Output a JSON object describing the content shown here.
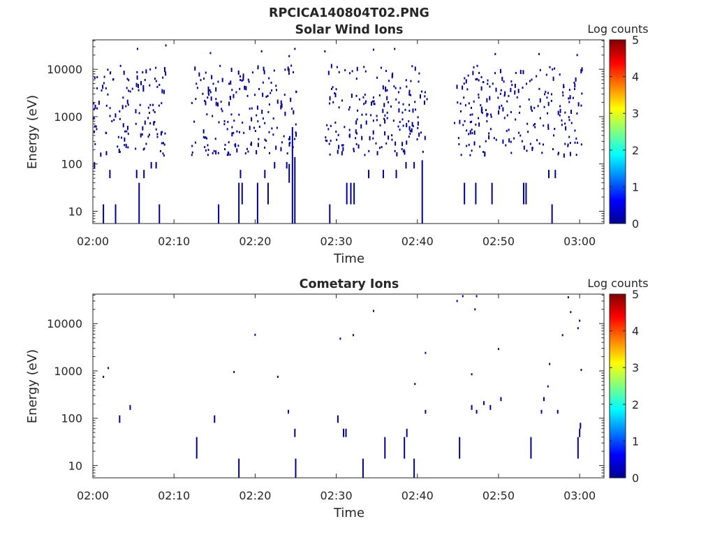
{
  "figure": {
    "title": "RPCICA140804T02.PNG"
  },
  "colormap": {
    "colors": [
      "#00008f",
      "#0000ff",
      "#0080ff",
      "#00ffff",
      "#80ff80",
      "#ffff00",
      "#ff8000",
      "#ff0000",
      "#800000"
    ]
  },
  "chart_data": [
    {
      "type": "heatmap",
      "title": "Solar Wind Ions",
      "xlabel": "Time",
      "ylabel": "Energy (eV)",
      "x_ticks": [
        "02:00",
        "02:10",
        "02:20",
        "02:30",
        "02:40",
        "02:50",
        "03:00"
      ],
      "x_tick_minutes": [
        0,
        10,
        20,
        30,
        40,
        50,
        60
      ],
      "xlim_minutes": [
        0,
        63
      ],
      "y_scale": "log",
      "y_ticks": [
        "10",
        "100",
        "1000",
        "10000"
      ],
      "y_tick_values": [
        10,
        100,
        1000,
        10000
      ],
      "ylim": [
        5.5,
        42000
      ],
      "colorbar_label": "Log counts",
      "colorbar_ticks": [
        "0",
        "1",
        "2",
        "3",
        "4",
        "5"
      ],
      "colorbar_range": [
        0,
        5
      ],
      "grid": false,
      "features": [
        {
          "type": "vline",
          "t": 1.3,
          "e": [
            5.5,
            14
          ]
        },
        {
          "type": "vline",
          "t": 2.8,
          "e": [
            5.5,
            14
          ]
        },
        {
          "type": "vline",
          "t": 5.7,
          "e": [
            5.5,
            40
          ]
        },
        {
          "type": "vline",
          "t": 8.2,
          "e": [
            5.5,
            14
          ]
        },
        {
          "type": "vline",
          "t": 15.5,
          "e": [
            5.5,
            14
          ]
        },
        {
          "type": "vline",
          "t": 18.0,
          "e": [
            5.5,
            40
          ]
        },
        {
          "type": "vline",
          "t": 20.3,
          "e": [
            5.5,
            40
          ]
        },
        {
          "type": "vline",
          "t": 24.6,
          "e": [
            5.5,
            600
          ]
        },
        {
          "type": "vline",
          "t": 24.9,
          "e": [
            5.5,
            140
          ]
        },
        {
          "type": "vline",
          "t": 29.2,
          "e": [
            5.5,
            14
          ]
        },
        {
          "type": "vline",
          "t": 40.6,
          "e": [
            5.5,
            120
          ]
        },
        {
          "type": "vline",
          "t": 56.6,
          "e": [
            5.5,
            14
          ]
        },
        {
          "type": "vline",
          "t": 18.4,
          "e": [
            14,
            40
          ]
        },
        {
          "type": "vline",
          "t": 21.6,
          "e": [
            14,
            40
          ]
        },
        {
          "type": "vline",
          "t": 24.2,
          "e": [
            40,
            100
          ]
        },
        {
          "type": "vline",
          "t": 31.3,
          "e": [
            14,
            40
          ]
        },
        {
          "type": "vline",
          "t": 31.8,
          "e": [
            14,
            40
          ]
        },
        {
          "type": "vline",
          "t": 32.2,
          "e": [
            14,
            40
          ]
        },
        {
          "type": "vline",
          "t": 45.8,
          "e": [
            14,
            40
          ]
        },
        {
          "type": "vline",
          "t": 47.2,
          "e": [
            14,
            40
          ]
        },
        {
          "type": "vline",
          "t": 49.2,
          "e": [
            14,
            40
          ]
        },
        {
          "type": "vline",
          "t": 53.1,
          "e": [
            14,
            40
          ]
        },
        {
          "type": "vline",
          "t": 53.4,
          "e": [
            14,
            40
          ]
        },
        {
          "type": "vline",
          "t": 0.2,
          "e": [
            80,
            110
          ]
        },
        {
          "type": "vline",
          "t": 2.1,
          "e": [
            50,
            75
          ]
        },
        {
          "type": "vline",
          "t": 5.4,
          "e": [
            50,
            75
          ]
        },
        {
          "type": "vline",
          "t": 6.3,
          "e": [
            50,
            75
          ]
        },
        {
          "type": "vline",
          "t": 7.2,
          "e": [
            80,
            110
          ]
        },
        {
          "type": "vline",
          "t": 7.8,
          "e": [
            80,
            110
          ]
        },
        {
          "type": "vline",
          "t": 18.2,
          "e": [
            50,
            75
          ]
        },
        {
          "type": "vline",
          "t": 21.2,
          "e": [
            50,
            75
          ]
        },
        {
          "type": "vline",
          "t": 22.4,
          "e": [
            80,
            110
          ]
        },
        {
          "type": "vline",
          "t": 23.9,
          "e": [
            80,
            110
          ]
        },
        {
          "type": "vline",
          "t": 34.0,
          "e": [
            50,
            75
          ]
        },
        {
          "type": "vline",
          "t": 35.8,
          "e": [
            50,
            75
          ]
        },
        {
          "type": "vline",
          "t": 37.4,
          "e": [
            50,
            75
          ]
        },
        {
          "type": "vline",
          "t": 38.6,
          "e": [
            80,
            110
          ]
        },
        {
          "type": "vline",
          "t": 39.6,
          "e": [
            80,
            110
          ]
        },
        {
          "type": "vline",
          "t": 56.2,
          "e": [
            50,
            75
          ]
        },
        {
          "type": "vline",
          "t": 57.0,
          "e": [
            50,
            75
          ]
        }
      ],
      "scatter": {
        "seed": 7,
        "bursts": [
          [
            0,
            9
          ],
          [
            12.2,
            25.1
          ],
          [
            28.6,
            41.3
          ],
          [
            44.5,
            60.3
          ]
        ],
        "e_range": [
          150,
          12000
        ],
        "density": 14
      },
      "extra_points": [
        [
          5.5,
          27000
        ],
        [
          9.0,
          32000
        ],
        [
          14.5,
          22000
        ],
        [
          20.8,
          24000
        ],
        [
          24.2,
          19000
        ],
        [
          24.9,
          27000
        ],
        [
          28.6,
          24000
        ],
        [
          34.6,
          26000
        ],
        [
          37.2,
          27000
        ],
        [
          49.6,
          21000
        ],
        [
          55.0,
          21000
        ],
        [
          59.7,
          20000
        ],
        [
          0.1,
          1900
        ],
        [
          0.3,
          1700
        ],
        [
          30.0,
          3800
        ]
      ]
    },
    {
      "type": "heatmap",
      "title": "Cometary Ions",
      "xlabel": "Time",
      "ylabel": "Energy (eV)",
      "x_ticks": [
        "02:00",
        "02:10",
        "02:20",
        "02:30",
        "02:40",
        "02:50",
        "03:00"
      ],
      "x_tick_minutes": [
        0,
        10,
        20,
        30,
        40,
        50,
        60
      ],
      "xlim_minutes": [
        0,
        63
      ],
      "y_scale": "log",
      "y_ticks": [
        "10",
        "100",
        "1000",
        "10000"
      ],
      "y_tick_values": [
        10,
        100,
        1000,
        10000
      ],
      "ylim": [
        5.5,
        42000
      ],
      "colorbar_label": "Log counts",
      "colorbar_ticks": [
        "0",
        "1",
        "2",
        "3",
        "4",
        "5"
      ],
      "colorbar_range": [
        0,
        5
      ],
      "grid": false,
      "features": [
        {
          "type": "vline",
          "t": 18.0,
          "e": [
            5.5,
            14
          ]
        },
        {
          "type": "vline",
          "t": 25.0,
          "e": [
            5.5,
            14
          ]
        },
        {
          "type": "vline",
          "t": 33.3,
          "e": [
            5.5,
            14
          ]
        },
        {
          "type": "vline",
          "t": 39.6,
          "e": [
            5.5,
            14
          ]
        },
        {
          "type": "vline",
          "t": 12.8,
          "e": [
            14,
            40
          ]
        },
        {
          "type": "vline",
          "t": 36.0,
          "e": [
            14,
            40
          ]
        },
        {
          "type": "vline",
          "t": 38.4,
          "e": [
            14,
            40
          ]
        },
        {
          "type": "vline",
          "t": 45.2,
          "e": [
            14,
            40
          ]
        },
        {
          "type": "vline",
          "t": 54.0,
          "e": [
            14,
            40
          ]
        },
        {
          "type": "vline",
          "t": 59.8,
          "e": [
            14,
            40
          ]
        },
        {
          "type": "vline",
          "t": 24.9,
          "e": [
            40,
            60
          ]
        },
        {
          "type": "vline",
          "t": 30.9,
          "e": [
            40,
            60
          ]
        },
        {
          "type": "vline",
          "t": 31.2,
          "e": [
            40,
            60
          ]
        },
        {
          "type": "vline",
          "t": 38.7,
          "e": [
            40,
            60
          ]
        },
        {
          "type": "vline",
          "t": 60.0,
          "e": [
            40,
            60
          ]
        },
        {
          "type": "vline",
          "t": 3.3,
          "e": [
            80,
            115
          ]
        },
        {
          "type": "vline",
          "t": 15.0,
          "e": [
            80,
            115
          ]
        },
        {
          "type": "vline",
          "t": 30.2,
          "e": [
            80,
            115
          ]
        },
        {
          "type": "vline",
          "t": 60.1,
          "e": [
            60,
            80
          ]
        },
        {
          "type": "vline",
          "t": 4.6,
          "e": [
            150,
            190
          ]
        },
        {
          "type": "vline",
          "t": 24.1,
          "e": [
            125,
            150
          ]
        },
        {
          "type": "vline",
          "t": 41.0,
          "e": [
            125,
            150
          ]
        },
        {
          "type": "vline",
          "t": 46.7,
          "e": [
            150,
            190
          ]
        },
        {
          "type": "vline",
          "t": 47.3,
          "e": [
            125,
            150
          ]
        },
        {
          "type": "vline",
          "t": 48.2,
          "e": [
            190,
            230
          ]
        },
        {
          "type": "vline",
          "t": 49.0,
          "e": [
            150,
            190
          ]
        },
        {
          "type": "vline",
          "t": 50.3,
          "e": [
            230,
            280
          ]
        },
        {
          "type": "vline",
          "t": 55.3,
          "e": [
            125,
            150
          ]
        },
        {
          "type": "vline",
          "t": 55.6,
          "e": [
            230,
            280
          ]
        },
        {
          "type": "vline",
          "t": 57.3,
          "e": [
            125,
            150
          ]
        }
      ],
      "points": [
        [
          1.3,
          750
        ],
        [
          1.9,
          1150
        ],
        [
          17.4,
          950
        ],
        [
          20.0,
          5800
        ],
        [
          22.8,
          750
        ],
        [
          30.5,
          4800
        ],
        [
          32.1,
          5700
        ],
        [
          34.6,
          18500
        ],
        [
          39.7,
          530
        ],
        [
          41.0,
          2400
        ],
        [
          44.9,
          30000
        ],
        [
          45.6,
          38000
        ],
        [
          46.7,
          850
        ],
        [
          47.1,
          20000
        ],
        [
          47.3,
          38000
        ],
        [
          50.0,
          2900
        ],
        [
          56.1,
          470
        ],
        [
          56.3,
          1400
        ],
        [
          57.9,
          5700
        ],
        [
          58.6,
          36000
        ],
        [
          58.9,
          17500
        ],
        [
          59.8,
          8000
        ],
        [
          60.0,
          11500
        ],
        [
          60.2,
          1050
        ]
      ]
    }
  ]
}
